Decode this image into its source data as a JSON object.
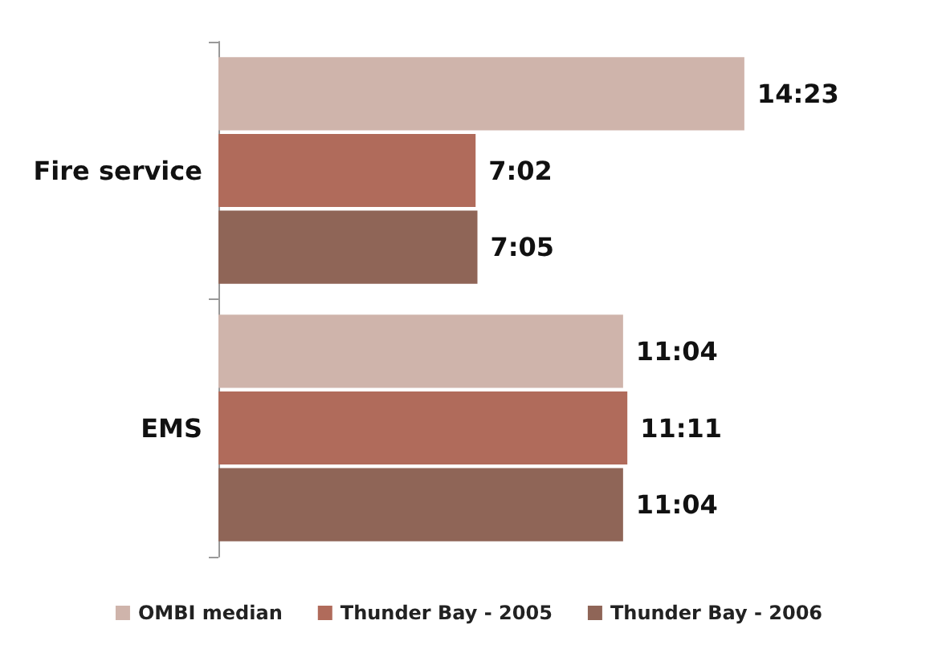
{
  "chart_data": {
    "type": "bar",
    "orientation": "horizontal",
    "categories": [
      "Fire service",
      "EMS"
    ],
    "series": [
      {
        "name": "OMBI median",
        "color": "#cfb4ab",
        "values": [
          863,
          664
        ],
        "value_labels": [
          "14:23",
          "11:04"
        ]
      },
      {
        "name": "Thunder Bay - 2005",
        "color": "#b06b5b",
        "values": [
          422,
          671
        ],
        "value_labels": [
          "7:02",
          "11:11"
        ]
      },
      {
        "name": "Thunder Bay - 2006",
        "color": "#8f6557",
        "values": [
          425,
          664
        ],
        "value_labels": [
          "7:05",
          "11:04"
        ]
      }
    ],
    "legend": "bottom",
    "grid": false
  }
}
